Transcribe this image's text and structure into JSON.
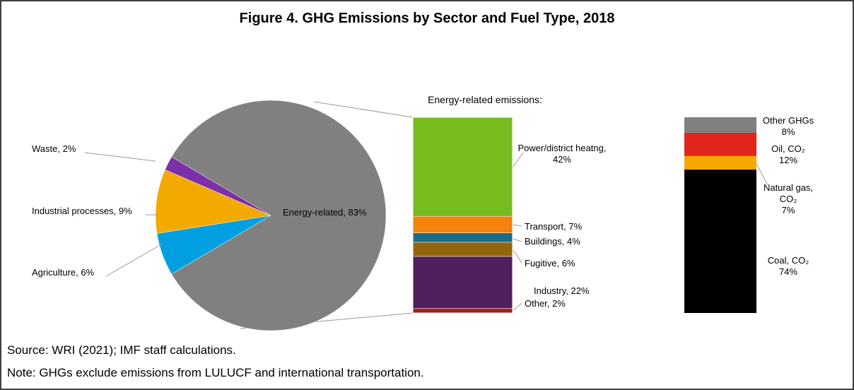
{
  "chart_data": [
    {
      "type": "pie",
      "title": "Figure 4. GHG Emissions by Sector and Fuel Type, 2018",
      "labels": [
        "Energy-related, 83%",
        "Waste, 2%",
        "Industrial processes, 9%",
        "Agriculture, 6%"
      ],
      "values": [
        83,
        2,
        9,
        6
      ],
      "colors": [
        "#808080",
        "#7b2fa8",
        "#f2a900",
        "#00a0e0"
      ]
    },
    {
      "type": "stacked-bar",
      "title": "Energy-related emissions:",
      "labels": [
        "Other, 2%",
        "Industry, 22%",
        "Fugitive, 6%",
        "Buildings, 4%",
        "Transport, 7%",
        "Power/district heatng,\n42%"
      ],
      "values": [
        2,
        22,
        6,
        4,
        7,
        42
      ],
      "colors": [
        "#a0201c",
        "#4f1f60",
        "#94660c",
        "#1a6b8a",
        "#f5820d",
        "#77bc1f"
      ]
    },
    {
      "type": "stacked-bar",
      "labels": [
        "Coal, CO₂\n74%",
        "Natural gas,\nCO₂\n7%",
        "Oil, CO₂\n12%",
        "Other GHGs\n8%"
      ],
      "values": [
        74,
        7,
        12,
        8
      ],
      "colors": [
        "#000000",
        "#f5a800",
        "#e0251b",
        "#808080"
      ]
    }
  ],
  "source": "Source: WRI (2021); IMF staff calculations.",
  "note": "Note: GHGs exclude emissions from LULUCF and international transportation."
}
